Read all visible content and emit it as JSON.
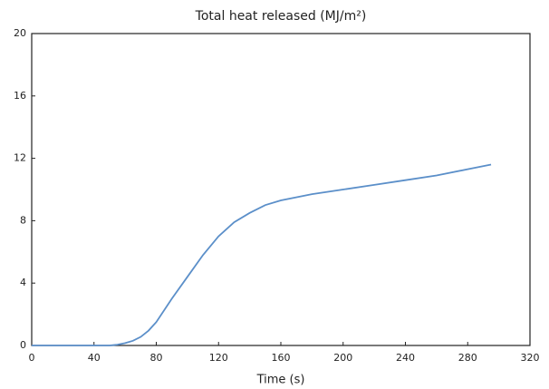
{
  "chart_data": {
    "type": "line",
    "title": "Total heat released (MJ/m²)",
    "x_label": "Time (s)",
    "x": [
      0,
      20,
      40,
      50,
      55,
      60,
      65,
      70,
      75,
      80,
      90,
      100,
      110,
      120,
      130,
      140,
      150,
      160,
      180,
      200,
      220,
      240,
      260,
      280,
      295
    ],
    "series": [
      {
        "name": "Total heat released",
        "color": "#5b8fc9",
        "values": [
          0,
          0,
          0,
          0,
          0.05,
          0.15,
          0.3,
          0.55,
          0.95,
          1.5,
          3,
          4.4,
          5.8,
          7,
          7.9,
          8.5,
          9.0,
          9.3,
          9.7,
          10.0,
          10.3,
          10.6,
          10.9,
          11.3,
          11.6
        ]
      }
    ],
    "xlim": [
      0,
      320
    ],
    "xticks": [
      0,
      40,
      80,
      120,
      160,
      200,
      240,
      280,
      320
    ],
    "ylim": [
      0,
      20
    ],
    "yticks": [
      0,
      4,
      8,
      12,
      16,
      20
    ],
    "grid": false
  }
}
